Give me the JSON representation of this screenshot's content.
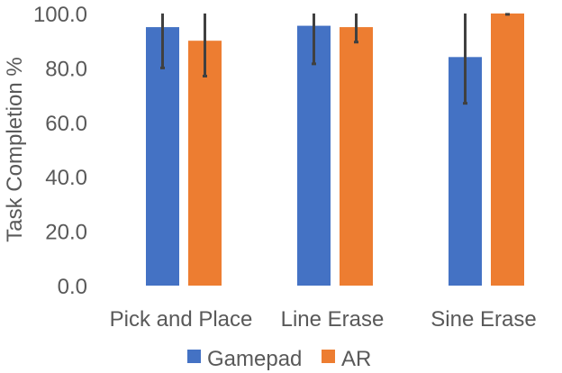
{
  "chart_data": {
    "type": "bar",
    "title": "",
    "xlabel": "",
    "ylabel": "Task Completion %",
    "ylim": [
      0,
      100
    ],
    "yticks": [
      "0.0",
      "20.0",
      "40.0",
      "60.0",
      "80.0",
      "100.0"
    ],
    "categories": [
      "Pick and Place",
      "Line Erase",
      "Sine Erase"
    ],
    "series": [
      {
        "name": "Gamepad",
        "color": "#4472C4",
        "values": [
          95.0,
          95.5,
          84.0
        ],
        "error": [
          15.0,
          14.0,
          17.0
        ]
      },
      {
        "name": "AR",
        "color": "#ED7D31",
        "values": [
          90.0,
          95.0,
          100.0
        ],
        "error": [
          13.0,
          5.5,
          0.3
        ]
      }
    ],
    "error_bar_color": "#404040",
    "grid": false,
    "legend_position": "bottom"
  }
}
